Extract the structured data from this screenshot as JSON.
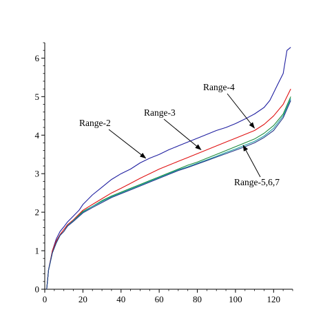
{
  "chart_data": {
    "type": "line",
    "title": "",
    "xlabel": "",
    "ylabel": "",
    "xlim": [
      0,
      130
    ],
    "ylim": [
      0,
      6.4
    ],
    "x_ticks": [
      0,
      20,
      40,
      60,
      80,
      100,
      120
    ],
    "y_ticks": [
      0,
      1,
      2,
      3,
      4,
      5,
      6
    ],
    "grid": false,
    "legend": "none",
    "series": [
      {
        "color": "#1e1ea0",
        "points": [
          [
            1,
            0
          ],
          [
            2,
            0.5
          ],
          [
            4,
            1.0
          ],
          [
            6,
            1.3
          ],
          [
            8,
            1.5
          ],
          [
            10,
            1.62
          ],
          [
            12,
            1.75
          ],
          [
            15,
            1.9
          ],
          [
            18,
            2.05
          ],
          [
            20,
            2.2
          ],
          [
            25,
            2.45
          ],
          [
            30,
            2.65
          ],
          [
            35,
            2.85
          ],
          [
            40,
            3.0
          ],
          [
            45,
            3.12
          ],
          [
            50,
            3.28
          ],
          [
            55,
            3.4
          ],
          [
            60,
            3.5
          ],
          [
            65,
            3.62
          ],
          [
            70,
            3.72
          ],
          [
            75,
            3.82
          ],
          [
            80,
            3.92
          ],
          [
            85,
            4.02
          ],
          [
            90,
            4.12
          ],
          [
            95,
            4.2
          ],
          [
            100,
            4.3
          ],
          [
            105,
            4.42
          ],
          [
            110,
            4.55
          ],
          [
            115,
            4.72
          ],
          [
            118,
            4.9
          ],
          [
            120,
            5.1
          ],
          [
            122,
            5.3
          ],
          [
            125,
            5.6
          ],
          [
            127,
            6.2
          ],
          [
            129,
            6.28
          ]
        ]
      },
      {
        "color": "#e01010",
        "points": [
          [
            1,
            0
          ],
          [
            2,
            0.5
          ],
          [
            4,
            1.0
          ],
          [
            6,
            1.25
          ],
          [
            8,
            1.42
          ],
          [
            10,
            1.55
          ],
          [
            12,
            1.68
          ],
          [
            15,
            1.8
          ],
          [
            20,
            2.05
          ],
          [
            25,
            2.2
          ],
          [
            30,
            2.35
          ],
          [
            35,
            2.5
          ],
          [
            40,
            2.62
          ],
          [
            45,
            2.75
          ],
          [
            50,
            2.88
          ],
          [
            55,
            3.0
          ],
          [
            60,
            3.12
          ],
          [
            65,
            3.22
          ],
          [
            70,
            3.32
          ],
          [
            75,
            3.42
          ],
          [
            80,
            3.52
          ],
          [
            85,
            3.62
          ],
          [
            90,
            3.72
          ],
          [
            95,
            3.82
          ],
          [
            100,
            3.92
          ],
          [
            105,
            4.02
          ],
          [
            110,
            4.12
          ],
          [
            115,
            4.28
          ],
          [
            120,
            4.5
          ],
          [
            125,
            4.8
          ],
          [
            129,
            5.2
          ]
        ]
      },
      {
        "color": "#1a8a3a",
        "points": [
          [
            1,
            0
          ],
          [
            2,
            0.5
          ],
          [
            4,
            0.95
          ],
          [
            6,
            1.2
          ],
          [
            8,
            1.4
          ],
          [
            10,
            1.5
          ],
          [
            12,
            1.65
          ],
          [
            15,
            1.78
          ],
          [
            20,
            2.02
          ],
          [
            25,
            2.15
          ],
          [
            30,
            2.3
          ],
          [
            35,
            2.42
          ],
          [
            40,
            2.52
          ],
          [
            45,
            2.62
          ],
          [
            50,
            2.72
          ],
          [
            55,
            2.82
          ],
          [
            60,
            2.92
          ],
          [
            65,
            3.02
          ],
          [
            70,
            3.12
          ],
          [
            75,
            3.22
          ],
          [
            80,
            3.3
          ],
          [
            85,
            3.4
          ],
          [
            90,
            3.5
          ],
          [
            95,
            3.6
          ],
          [
            100,
            3.7
          ],
          [
            105,
            3.8
          ],
          [
            110,
            3.9
          ],
          [
            115,
            4.05
          ],
          [
            120,
            4.25
          ],
          [
            125,
            4.55
          ],
          [
            129,
            5.0
          ]
        ]
      },
      {
        "color": "#1aa0a0",
        "points": [
          [
            1,
            0
          ],
          [
            2,
            0.5
          ],
          [
            4,
            0.95
          ],
          [
            6,
            1.2
          ],
          [
            8,
            1.4
          ],
          [
            10,
            1.5
          ],
          [
            12,
            1.65
          ],
          [
            15,
            1.78
          ],
          [
            20,
            2.0
          ],
          [
            25,
            2.15
          ],
          [
            30,
            2.28
          ],
          [
            35,
            2.4
          ],
          [
            40,
            2.5
          ],
          [
            45,
            2.6
          ],
          [
            50,
            2.7
          ],
          [
            55,
            2.8
          ],
          [
            60,
            2.9
          ],
          [
            65,
            3.0
          ],
          [
            70,
            3.1
          ],
          [
            75,
            3.18
          ],
          [
            80,
            3.27
          ],
          [
            85,
            3.36
          ],
          [
            90,
            3.45
          ],
          [
            95,
            3.55
          ],
          [
            100,
            3.64
          ],
          [
            105,
            3.74
          ],
          [
            110,
            3.84
          ],
          [
            115,
            3.98
          ],
          [
            120,
            4.18
          ],
          [
            125,
            4.5
          ],
          [
            129,
            4.95
          ]
        ]
      },
      {
        "color": "#2a3a8a",
        "points": [
          [
            1,
            0
          ],
          [
            2,
            0.5
          ],
          [
            4,
            0.95
          ],
          [
            6,
            1.2
          ],
          [
            8,
            1.4
          ],
          [
            10,
            1.5
          ],
          [
            12,
            1.64
          ],
          [
            15,
            1.76
          ],
          [
            20,
            1.98
          ],
          [
            25,
            2.12
          ],
          [
            30,
            2.25
          ],
          [
            35,
            2.38
          ],
          [
            40,
            2.48
          ],
          [
            45,
            2.58
          ],
          [
            50,
            2.68
          ],
          [
            55,
            2.78
          ],
          [
            60,
            2.88
          ],
          [
            65,
            2.98
          ],
          [
            70,
            3.08
          ],
          [
            75,
            3.16
          ],
          [
            80,
            3.25
          ],
          [
            85,
            3.34
          ],
          [
            90,
            3.43
          ],
          [
            95,
            3.52
          ],
          [
            100,
            3.61
          ],
          [
            105,
            3.7
          ],
          [
            110,
            3.8
          ],
          [
            115,
            3.94
          ],
          [
            120,
            4.12
          ],
          [
            125,
            4.45
          ],
          [
            129,
            4.9
          ]
        ]
      }
    ],
    "annotations": [
      {
        "text": "Range-2",
        "arrow_to": [
          53,
          3.4
        ]
      },
      {
        "text": "Range-3",
        "arrow_to": [
          82,
          3.62
        ]
      },
      {
        "text": "Range-4",
        "arrow_to": [
          110,
          4.18
        ]
      },
      {
        "text": "Range-5,6,7",
        "arrow_to": [
          104,
          3.74
        ]
      }
    ]
  }
}
